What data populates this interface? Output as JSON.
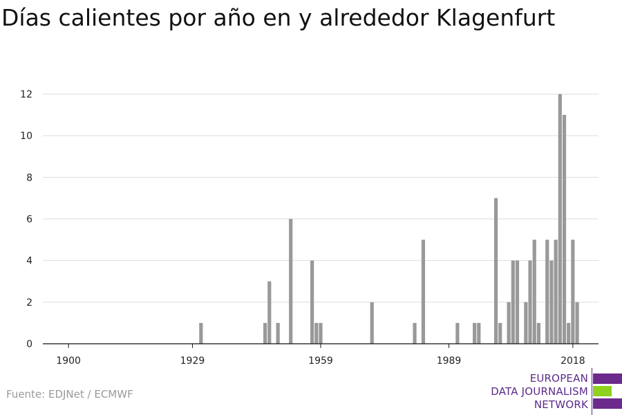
{
  "chart_data": {
    "type": "bar",
    "title": "Días calientes por año en y alrededor Klagenfurt",
    "xlabel": "",
    "ylabel": "",
    "xlim": [
      1894,
      2024
    ],
    "ylim": [
      0,
      12
    ],
    "yticks": [
      0,
      2,
      4,
      6,
      8,
      10,
      12
    ],
    "xticks": [
      1900,
      1929,
      1959,
      1989,
      2018
    ],
    "grid": true,
    "color": "#999999",
    "x": [
      1931,
      1946,
      1947,
      1949,
      1952,
      1957,
      1958,
      1959,
      1971,
      1981,
      1983,
      1991,
      1995,
      1996,
      2000,
      2001,
      2003,
      2004,
      2005,
      2007,
      2008,
      2009,
      2010,
      2012,
      2013,
      2014,
      2015,
      2016,
      2017,
      2018,
      2019,
      2020
    ],
    "values": [
      1,
      1,
      3,
      1,
      6,
      4,
      1,
      1,
      2,
      1,
      5,
      1,
      1,
      1,
      7,
      1,
      2,
      4,
      4,
      2,
      4,
      5,
      1,
      5,
      4,
      5,
      12,
      11,
      1,
      5,
      2,
      0
    ]
  },
  "source": "Fuente: EDJNet / ECMWF",
  "logo": {
    "line1": "EUROPEAN",
    "line2": "DATA JOURNALISM",
    "line3": "NETWORK",
    "purple": "#6b2a8c",
    "green": "#8ed11f"
  }
}
